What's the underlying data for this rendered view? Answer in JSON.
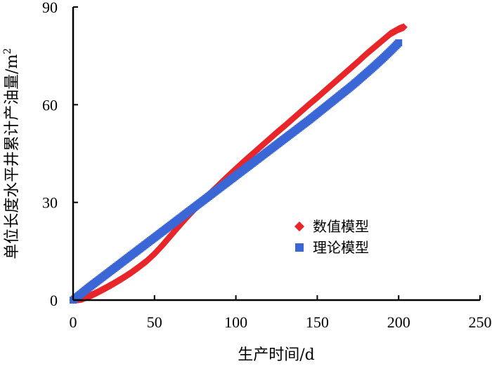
{
  "chart_data": {
    "type": "scatter",
    "xlabel": "生产时间/d",
    "ylabel_main": "单位长度水平井累计产油量/m",
    "ylabel_sup": "2",
    "xlim": [
      0,
      250
    ],
    "ylim": [
      0,
      90
    ],
    "xticks": [
      "0",
      "50",
      "100",
      "150",
      "200",
      "250"
    ],
    "yticks": [
      "0",
      "30",
      "60",
      "90"
    ],
    "grid": false,
    "legend_position": "center-right",
    "series": [
      {
        "name": "数值模型",
        "marker": "diamond",
        "color": "#e8262a",
        "x": [
          0,
          5,
          10,
          15,
          20,
          25,
          30,
          35,
          40,
          45,
          50,
          55,
          60,
          65,
          70,
          75,
          80,
          85,
          90,
          95,
          100,
          105,
          110,
          115,
          120,
          125,
          130,
          135,
          140,
          145,
          150,
          155,
          160,
          165,
          170,
          175,
          180,
          185,
          190,
          195,
          200,
          203
        ],
        "y": [
          0,
          0.3,
          1.2,
          2.4,
          3.7,
          5.1,
          6.6,
          8.2,
          10.0,
          11.9,
          14.2,
          16.9,
          19.8,
          22.7,
          25.5,
          28.1,
          30.7,
          33.2,
          35.6,
          38.0,
          40.3,
          42.6,
          44.8,
          47.0,
          49.2,
          51.4,
          53.5,
          55.7,
          57.9,
          60.1,
          62.2,
          64.4,
          66.6,
          68.8,
          71.0,
          73.2,
          75.5,
          77.6,
          79.7,
          81.8,
          83.2,
          83.8
        ]
      },
      {
        "name": "理论模型",
        "marker": "square",
        "color": "#3b66d6",
        "x": [
          0,
          5,
          10,
          15,
          20,
          25,
          30,
          35,
          40,
          45,
          50,
          55,
          60,
          65,
          70,
          75,
          80,
          85,
          90,
          95,
          100,
          105,
          110,
          115,
          120,
          125,
          130,
          135,
          140,
          145,
          150,
          155,
          160,
          165,
          170,
          175,
          180,
          185,
          190,
          195,
          200
        ],
        "y": [
          0,
          2.0,
          4.0,
          5.9,
          7.8,
          9.7,
          11.6,
          13.5,
          15.4,
          17.3,
          19.2,
          21.1,
          23.0,
          24.9,
          26.8,
          28.7,
          30.6,
          32.5,
          34.4,
          36.3,
          38.2,
          40.1,
          42.0,
          43.9,
          45.8,
          47.7,
          49.6,
          51.5,
          53.4,
          55.3,
          57.3,
          59.3,
          61.3,
          63.3,
          65.3,
          67.4,
          69.6,
          71.8,
          74.1,
          76.5,
          79.0
        ]
      }
    ]
  }
}
